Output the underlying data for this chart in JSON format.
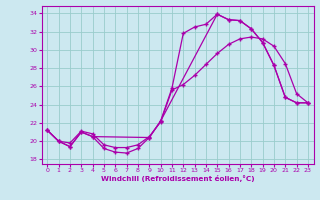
{
  "xlabel": "Windchill (Refroidissement éolien,°C)",
  "bg_color": "#cce8f0",
  "line_color": "#aa00aa",
  "grid_color": "#99cccc",
  "xlim": [
    -0.5,
    23.5
  ],
  "ylim": [
    17.5,
    34.8
  ],
  "yticks": [
    18,
    20,
    22,
    24,
    26,
    28,
    30,
    32,
    34
  ],
  "xticks": [
    0,
    1,
    2,
    3,
    4,
    5,
    6,
    7,
    8,
    9,
    10,
    11,
    12,
    13,
    14,
    15,
    16,
    17,
    18,
    19,
    20,
    21,
    22,
    23
  ],
  "series1_x": [
    0,
    1,
    2,
    3,
    4,
    5,
    6,
    7,
    8,
    9,
    10,
    11,
    12,
    13,
    14,
    15,
    16,
    17,
    18,
    19,
    20,
    21,
    22,
    23
  ],
  "series1_y": [
    21.2,
    20.0,
    19.4,
    21.0,
    20.5,
    19.2,
    18.8,
    18.7,
    19.2,
    20.4,
    22.2,
    25.8,
    31.8,
    32.5,
    32.8,
    33.9,
    33.3,
    33.2,
    32.3,
    30.8,
    28.3,
    24.8,
    24.2,
    24.2
  ],
  "series2_x": [
    0,
    1,
    2,
    3,
    4,
    5,
    6,
    7,
    8,
    9,
    10,
    11,
    12,
    13,
    14,
    15,
    16,
    17,
    18,
    19,
    20,
    21,
    22,
    23
  ],
  "series2_y": [
    21.2,
    20.0,
    19.8,
    21.1,
    20.8,
    19.6,
    19.3,
    19.3,
    19.6,
    20.5,
    22.1,
    25.6,
    26.2,
    27.2,
    28.4,
    29.6,
    30.6,
    31.2,
    31.4,
    31.2,
    30.4,
    28.5,
    25.2,
    24.2
  ],
  "series3_x": [
    0,
    1,
    2,
    3,
    4,
    9,
    10,
    15,
    16,
    17,
    18,
    19,
    20,
    21,
    22,
    23
  ],
  "series3_y": [
    21.2,
    20.0,
    19.4,
    21.0,
    20.5,
    20.4,
    22.2,
    33.9,
    33.3,
    33.2,
    32.3,
    30.8,
    28.3,
    24.8,
    24.2,
    24.2
  ]
}
